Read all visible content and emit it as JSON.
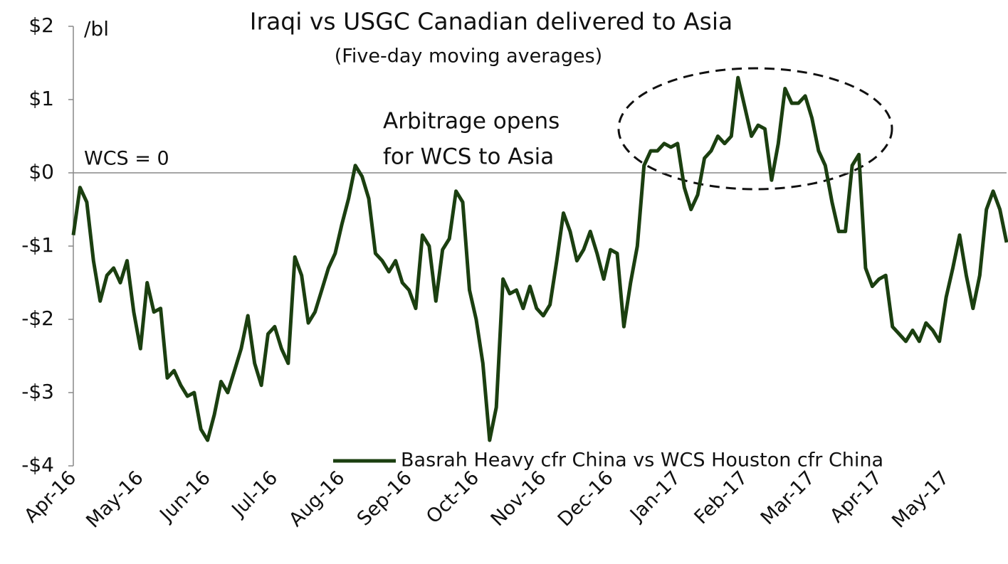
{
  "chart_data": {
    "type": "line",
    "title": "Iraqi vs USGC Canadian delivered to Asia",
    "subtitle": "(Five-day moving averages)",
    "y_unit_label": "/bl",
    "annotations": [
      "WCS = 0",
      [
        "Arbitrage opens",
        "for WCS to Asia"
      ]
    ],
    "categories": [
      "Apr-16",
      null,
      null,
      null,
      null,
      null,
      null,
      null,
      null,
      null,
      "May-16",
      null,
      null,
      null,
      null,
      null,
      null,
      null,
      null,
      null,
      "Jun-16",
      null,
      null,
      null,
      null,
      null,
      null,
      null,
      null,
      null,
      "Jul-16",
      null,
      null,
      null,
      null,
      null,
      null,
      null,
      null,
      null,
      "Aug-16",
      null,
      null,
      null,
      null,
      null,
      null,
      null,
      null,
      null,
      "Sep-16",
      null,
      null,
      null,
      null,
      null,
      null,
      null,
      null,
      null,
      "Oct-16",
      null,
      null,
      null,
      null,
      null,
      null,
      null,
      null,
      null,
      "Nov-16",
      null,
      null,
      null,
      null,
      null,
      null,
      null,
      null,
      null,
      "Dec-16",
      null,
      null,
      null,
      null,
      null,
      null,
      null,
      null,
      null,
      "Jan-17",
      null,
      null,
      null,
      null,
      null,
      null,
      null,
      null,
      null,
      "Feb-17",
      null,
      null,
      null,
      null,
      null,
      null,
      null,
      null,
      null,
      "Mar-17",
      null,
      null,
      null,
      null,
      null,
      null,
      null,
      null,
      null,
      "Apr-17",
      null,
      null,
      null,
      null,
      null,
      null,
      null,
      null,
      null,
      "May-17",
      null,
      null,
      null,
      null,
      null,
      null,
      null,
      null,
      null
    ],
    "series": [
      {
        "name": "Basrah Heavy cfr China vs WCS Houston cfr China",
        "color": "#1b3f10",
        "values": [
          -0.85,
          -0.2,
          -0.4,
          -1.2,
          -1.75,
          -1.4,
          -1.3,
          -1.5,
          -1.2,
          -1.9,
          -2.4,
          -1.5,
          -1.9,
          -1.85,
          -2.8,
          -2.7,
          -2.9,
          -3.05,
          -3.0,
          -3.5,
          -3.65,
          -3.3,
          -2.85,
          -3.0,
          -2.7,
          -2.4,
          -1.95,
          -2.6,
          -2.9,
          -2.2,
          -2.1,
          -2.4,
          -2.6,
          -1.15,
          -1.4,
          -2.05,
          -1.9,
          -1.6,
          -1.3,
          -1.1,
          -0.7,
          -0.35,
          0.1,
          -0.05,
          -0.35,
          -1.1,
          -1.2,
          -1.35,
          -1.2,
          -1.5,
          -1.6,
          -1.85,
          -0.85,
          -1.0,
          -1.75,
          -1.05,
          -0.9,
          -0.25,
          -0.4,
          -1.6,
          -2.0,
          -2.6,
          -3.65,
          -3.2,
          -1.45,
          -1.65,
          -1.6,
          -1.85,
          -1.55,
          -1.85,
          -1.95,
          -1.8,
          -1.2,
          -0.55,
          -0.8,
          -1.2,
          -1.05,
          -0.8,
          -1.1,
          -1.45,
          -1.05,
          -1.1,
          -2.1,
          -1.5,
          -1.0,
          0.1,
          0.3,
          0.3,
          0.4,
          0.35,
          0.4,
          -0.2,
          -0.5,
          -0.3,
          0.2,
          0.3,
          0.5,
          0.4,
          0.5,
          1.3,
          0.9,
          0.5,
          0.65,
          0.6,
          -0.1,
          0.4,
          1.15,
          0.95,
          0.95,
          1.05,
          0.75,
          0.3,
          0.1,
          -0.4,
          -0.8,
          -0.8,
          0.1,
          0.25,
          -1.3,
          -1.55,
          -1.45,
          -1.4,
          -2.1,
          -2.2,
          -2.3,
          -2.15,
          -2.3,
          -2.05,
          -2.15,
          -2.3,
          -1.7,
          -1.3,
          -0.85,
          -1.4,
          -1.85,
          -1.4,
          -0.5,
          -0.25,
          -0.5,
          -0.95
        ]
      }
    ],
    "ylim": [
      -4,
      2
    ],
    "yticks": [
      {
        "value": 2,
        "label": "$2"
      },
      {
        "value": 1,
        "label": "$1"
      },
      {
        "value": 0,
        "label": "$0"
      },
      {
        "value": -1,
        "label": "-$1"
      },
      {
        "value": -2,
        "label": "-$2"
      },
      {
        "value": -3,
        "label": "-$3"
      },
      {
        "value": -4,
        "label": "-$4"
      }
    ],
    "legend": "lower right"
  }
}
